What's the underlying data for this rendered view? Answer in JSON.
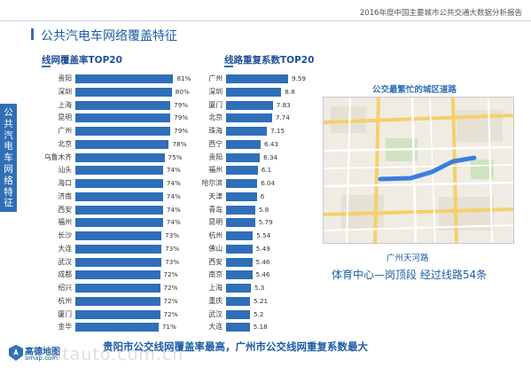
{
  "report_title": "2016年度中国主要城市公共交通大数据分析报告",
  "page_heading": "公共汽电车网络覆盖特征",
  "side_tab": "公共汽电车网络特征",
  "chart_data": [
    {
      "type": "bar",
      "orientation": "horizontal",
      "title": "线网覆盖率TOP20",
      "categories": [
        "贵阳",
        "深圳",
        "上海",
        "昆明",
        "广州",
        "北京",
        "乌鲁木齐",
        "汕头",
        "海口",
        "济南",
        "西安",
        "福州",
        "长沙",
        "大连",
        "武汉",
        "成都",
        "绍兴",
        "杭州",
        "厦门",
        "金华"
      ],
      "values": [
        81,
        80,
        79,
        79,
        79,
        78,
        75,
        74,
        74,
        74,
        74,
        74,
        73,
        73,
        73,
        72,
        72,
        72,
        72,
        71
      ],
      "value_labels": [
        "81%",
        "80%",
        "79%",
        "79%",
        "79%",
        "78%",
        "75%",
        "74%",
        "74%",
        "74%",
        "74%",
        "74%",
        "73%",
        "73%",
        "73%",
        "72%",
        "72%",
        "72%",
        "72%",
        "71%"
      ],
      "unit": "%",
      "xlim": [
        0,
        100
      ],
      "color": "#2f6fb7",
      "grid": false
    },
    {
      "type": "bar",
      "orientation": "horizontal",
      "title": "线路重复系数TOP20",
      "categories": [
        "广州",
        "深圳",
        "厦门",
        "北京",
        "珠海",
        "西宁",
        "贵阳",
        "福州",
        "哈尔滨",
        "天津",
        "青岛",
        "昆明",
        "杭州",
        "佛山",
        "西安",
        "南京",
        "上海",
        "重庆",
        "武汉",
        "大连"
      ],
      "values": [
        9.59,
        8.8,
        7.83,
        7.74,
        7.15,
        6.43,
        6.34,
        6.1,
        6.04,
        6,
        5.8,
        5.79,
        5.54,
        5.49,
        5.46,
        5.46,
        5.3,
        5.21,
        5.2,
        5.18
      ],
      "value_labels": [
        "9.59",
        "8.8",
        "7.83",
        "7.74",
        "7.15",
        "6.43",
        "6.34",
        "6.1",
        "6.04",
        "6",
        "5.8",
        "5.79",
        "5.54",
        "5.49",
        "5.46",
        "5.46",
        "5.3",
        "5.21",
        "5.2",
        "5.18"
      ],
      "xlim": [
        0,
        10
      ],
      "color": "#2f6fb7",
      "grid": false
    }
  ],
  "map": {
    "caption": "公交最繁忙的城区道路",
    "road_name": "广州天河路",
    "road_desc": "体育中心—岗顶段  经过线路54条",
    "highlight_color": "#3b7de0"
  },
  "conclusion": "贵阳市公交线网覆盖率最高，广州市公交线网重复系数最大",
  "logo": {
    "name": "高德地图",
    "url": "amap.com",
    "icon": "amap-logo-icon"
  },
  "watermark": "Bitauto.com.cn",
  "colors": {
    "accent": "#2f6fb7",
    "heading": "#1d5ea8"
  }
}
